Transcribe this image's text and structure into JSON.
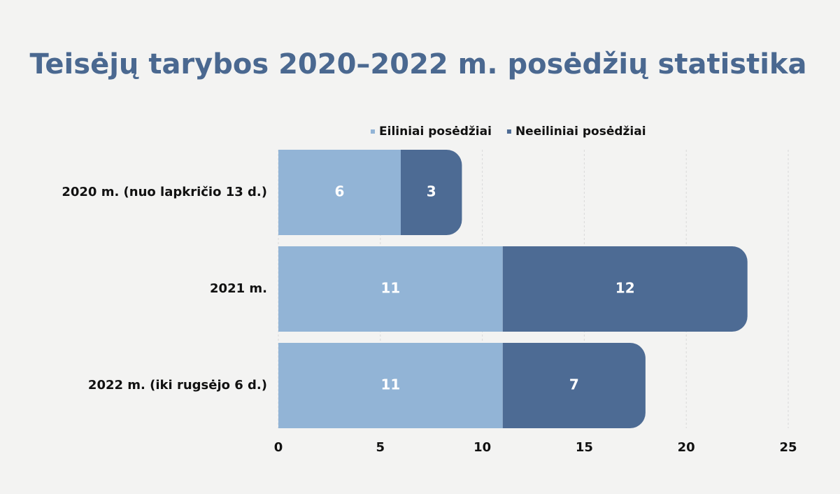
{
  "chart_data": {
    "type": "bar",
    "orientation": "horizontal",
    "stacked": true,
    "title": "Teisėjų tarybos 2020–2022 m. posėdžių statistika",
    "categories": [
      "2020 m. (nuo lapkričio 13 d.)",
      "2021  m.",
      "2022 m. (iki rugsėjo 6 d.)"
    ],
    "series": [
      {
        "name": "Eiliniai posėdžiai",
        "color": "#92b4d6",
        "values": [
          6,
          11,
          11
        ]
      },
      {
        "name": "Neeiliniai posėdžiai",
        "color": "#4d6b94",
        "values": [
          3,
          12,
          7
        ]
      }
    ],
    "xlim": [
      0,
      25
    ],
    "xticks": [
      0,
      5,
      10,
      15,
      20,
      25
    ],
    "grid": true,
    "legend": "top"
  }
}
